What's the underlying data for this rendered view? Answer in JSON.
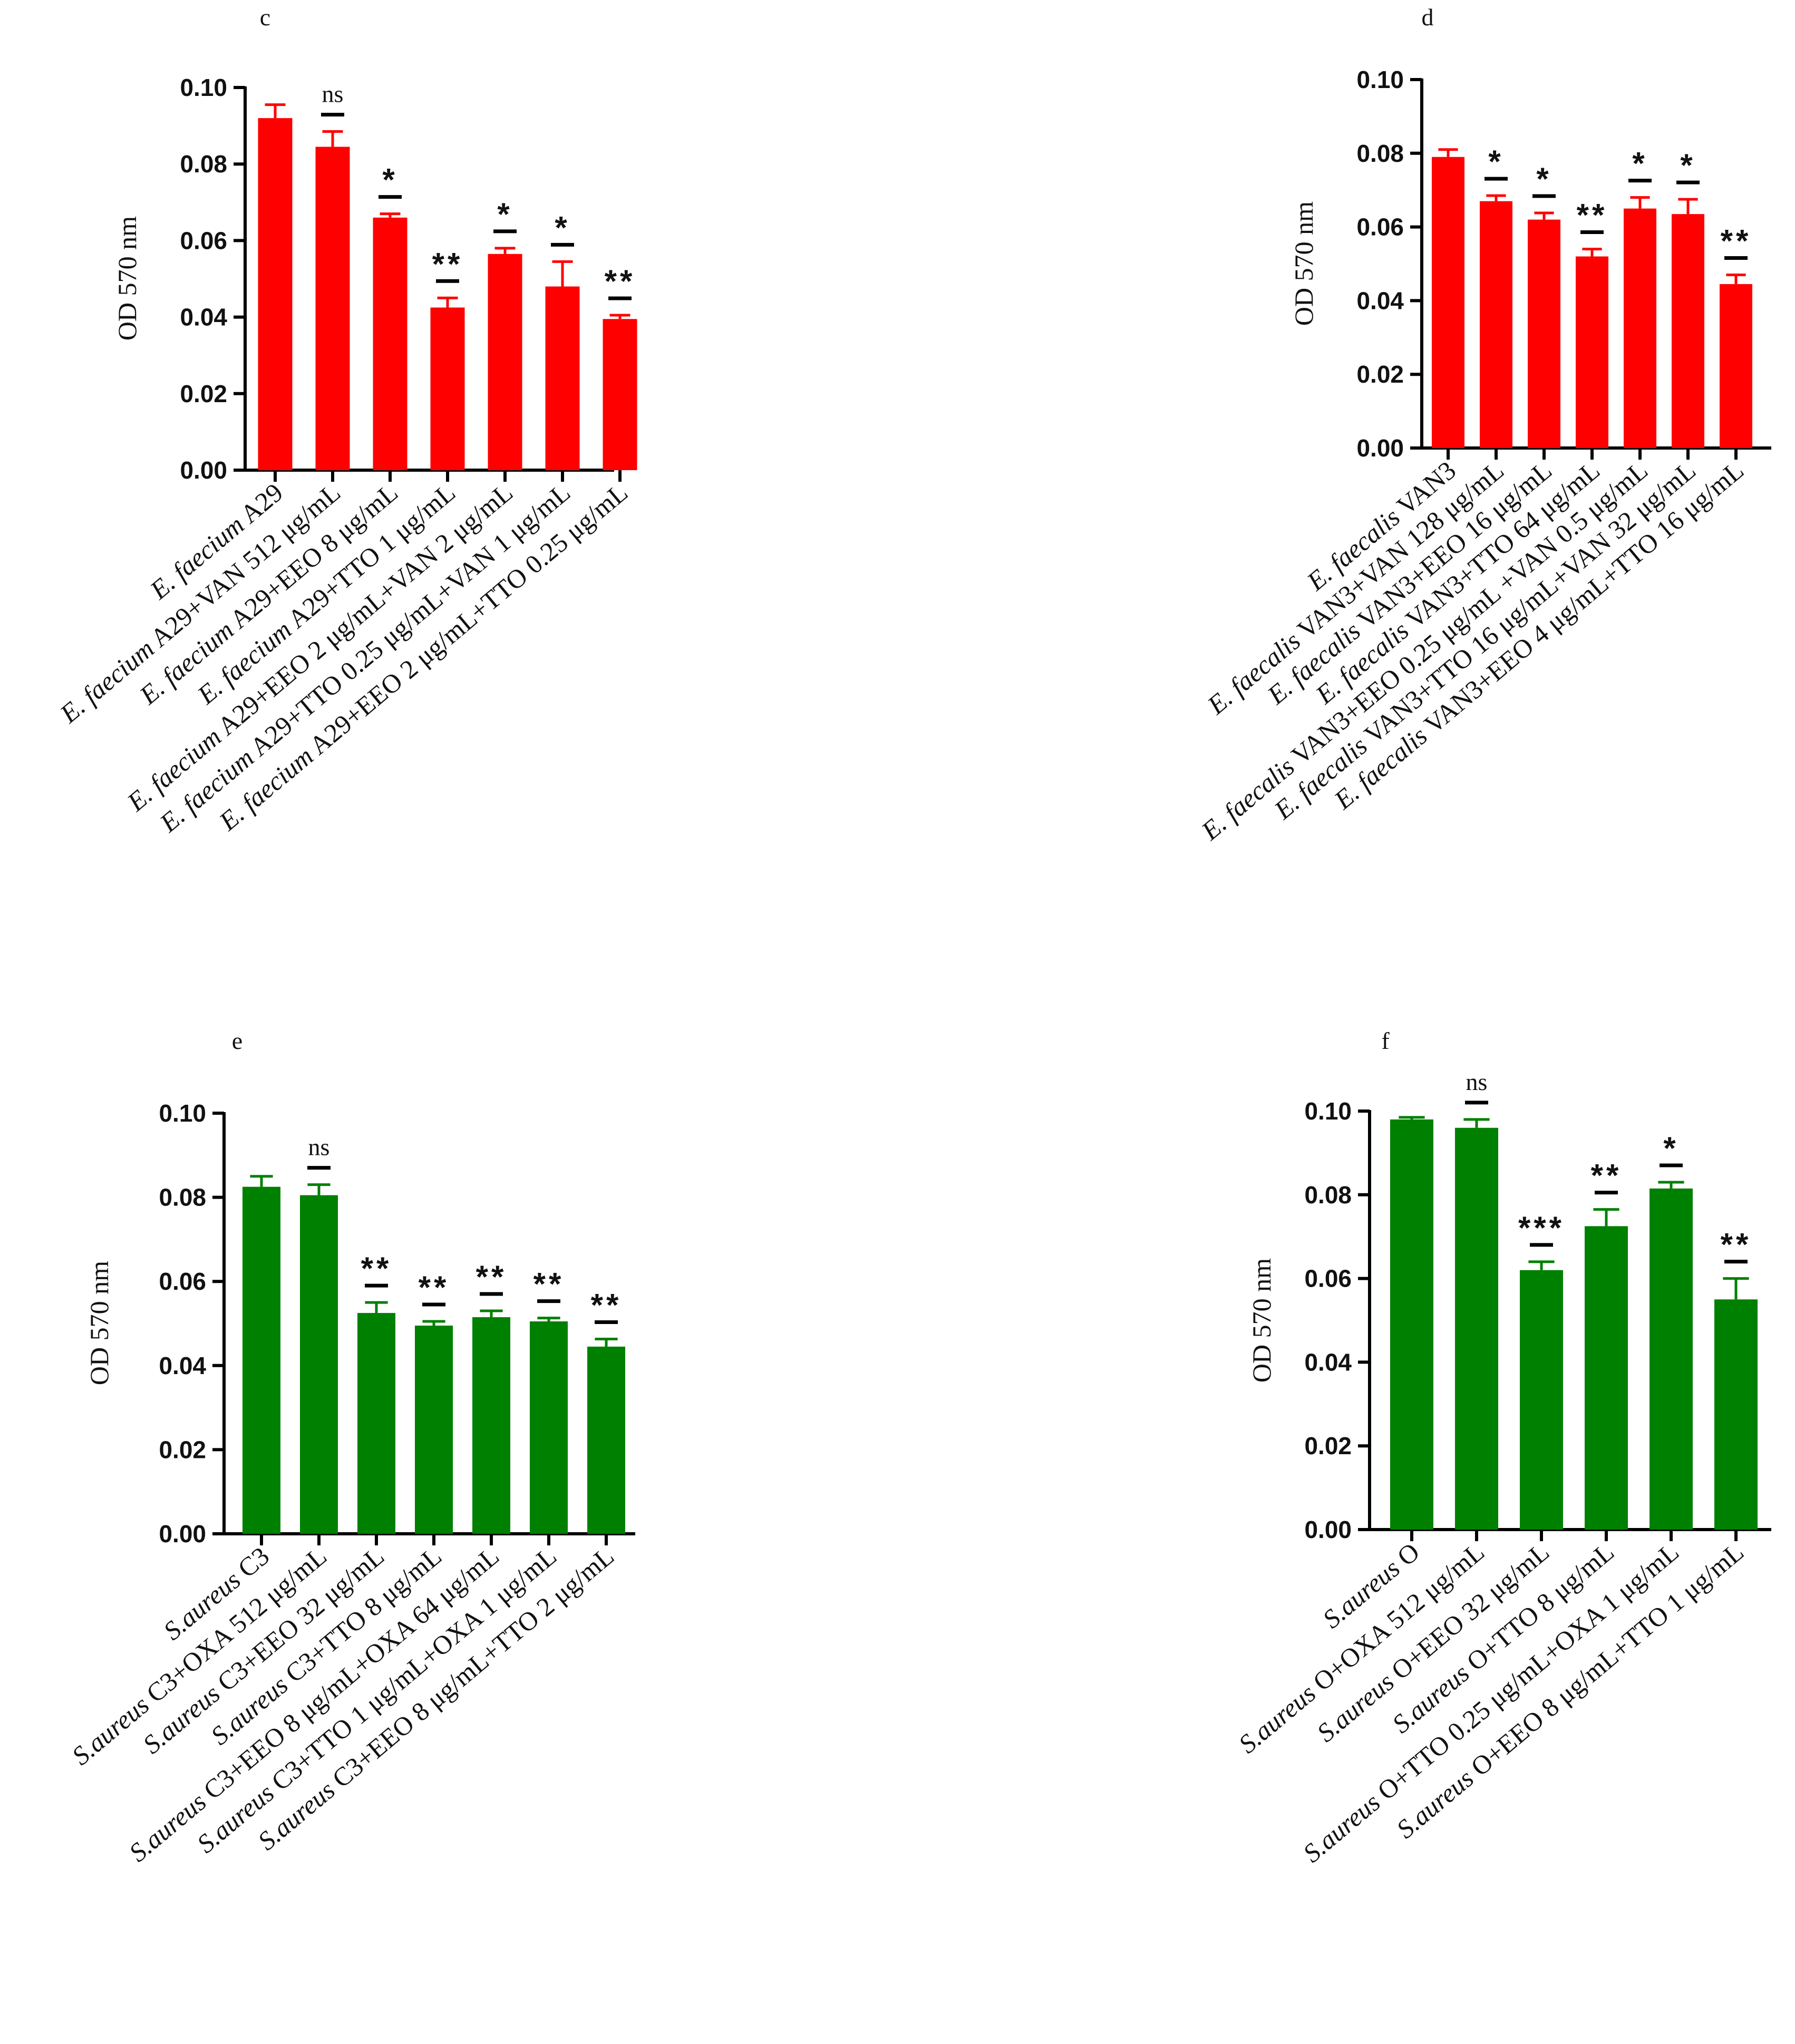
{
  "chart_data": [
    {
      "panel": "c",
      "type": "bar",
      "ylabel": "OD 570 nm",
      "ylim": [
        0,
        0.1
      ],
      "yticks": [
        "0.00",
        "0.02",
        "0.04",
        "0.06",
        "0.08",
        "0.10"
      ],
      "color": "#ff0000",
      "categories": [
        {
          "italic": "E. faecium",
          "rest": " A29"
        },
        {
          "italic": "E. faecium",
          "rest": " A29+VAN 512 μg/mL"
        },
        {
          "italic": "E. faecium",
          "rest": " A29+EEO 8 μg/mL"
        },
        {
          "italic": "E. faecium",
          "rest": " A29+TTO 1 μg/mL"
        },
        {
          "italic": "E. faecium",
          "rest": " A29+EEO 2 μg/mL+VAN 2 μg/mL"
        },
        {
          "italic": "E. faecium",
          "rest": " A29+TTO 0.25 μg/mL+VAN 1 μg/mL"
        },
        {
          "italic": "E. faecium",
          "rest": " A29+EEO 2 μg/mL+TTO 0.25 μg/mL"
        }
      ],
      "values": [
        0.092,
        0.0845,
        0.066,
        0.0425,
        0.0565,
        0.048,
        0.0395
      ],
      "errors": [
        0.0035,
        0.004,
        0.001,
        0.0025,
        0.0015,
        0.0065,
        0.001
      ],
      "significance": [
        "",
        "ns",
        "*",
        "**",
        "*",
        "*",
        "**"
      ]
    },
    {
      "panel": "d",
      "type": "bar",
      "ylabel": "OD 570 nm",
      "ylim": [
        0,
        0.1
      ],
      "yticks": [
        "0.00",
        "0.02",
        "0.04",
        "0.06",
        "0.08",
        "0.10"
      ],
      "color": "#ff0000",
      "categories": [
        {
          "italic": "E. faecalis",
          "rest": " VAN3"
        },
        {
          "italic": "E. faecalis",
          "rest": " VAN3+VAN 128 μg/mL"
        },
        {
          "italic": "E. faecalis",
          "rest": " VAN3+EEO 16 μg/mL"
        },
        {
          "italic": "E. faecalis",
          "rest": " VAN3+TTO 64 μg/mL"
        },
        {
          "italic": "E. faecalis",
          "rest": " VAN3+EEO 0.25 μg/mL +VAN 0.5 μg/mL"
        },
        {
          "italic": "E. faecalis",
          "rest": " VAN3+TTO 16 μg/mL+VAN 32 μg/mL"
        },
        {
          "italic": "E. faecalis",
          "rest": " VAN3+EEO 4 μg/mL+TTO 16 μg/mL"
        }
      ],
      "values": [
        0.079,
        0.067,
        0.062,
        0.052,
        0.065,
        0.0635,
        0.0445
      ],
      "errors": [
        0.002,
        0.0015,
        0.0018,
        0.002,
        0.003,
        0.004,
        0.0025
      ],
      "significance": [
        "",
        "*",
        "*",
        "**",
        "*",
        "*",
        "**"
      ]
    },
    {
      "panel": "e",
      "type": "bar",
      "ylabel": "OD 570 nm",
      "ylim": [
        0,
        0.1
      ],
      "yticks": [
        "0.00",
        "0.02",
        "0.04",
        "0.06",
        "0.08",
        "0.10"
      ],
      "color": "#008000",
      "categories": [
        {
          "italic": "S.aureus",
          "rest": " C3"
        },
        {
          "italic": "S.aureus",
          "rest": " C3+OXA 512 μg/mL"
        },
        {
          "italic": "S.aureus",
          "rest": " C3+EEO 32 μg/mL"
        },
        {
          "italic": "S.aureus",
          "rest": " C3+TTO 8 μg/mL"
        },
        {
          "italic": "S.aureus",
          "rest": " C3+EEO 8 μg/mL+OXA 64 μg/mL"
        },
        {
          "italic": "S.aureus",
          "rest": " C3+TTO 1 μg/mL+OXA 1 μg/mL"
        },
        {
          "italic": "S.aureus",
          "rest": " C3+EEO 8 μg/mL+TTO 2 μg/mL"
        }
      ],
      "values": [
        0.0825,
        0.0805,
        0.0525,
        0.0495,
        0.0515,
        0.0505,
        0.0445
      ],
      "errors": [
        0.0025,
        0.0025,
        0.0025,
        0.001,
        0.0015,
        0.0008,
        0.0018
      ],
      "significance": [
        "",
        "ns",
        "**",
        "**",
        "**",
        "**",
        "**"
      ]
    },
    {
      "panel": "f",
      "type": "bar",
      "ylabel": "OD 570 nm",
      "ylim": [
        0,
        0.1
      ],
      "yticks": [
        "0.00",
        "0.02",
        "0.04",
        "0.06",
        "0.08",
        "0.10"
      ],
      "color": "#008000",
      "categories": [
        {
          "italic": "S.aureus",
          "rest": " O"
        },
        {
          "italic": "S.aureus",
          "rest": " O+OXA 512 μg/mL"
        },
        {
          "italic": "S.aureus",
          "rest": " O+EEO 32 μg/mL"
        },
        {
          "italic": "S.aureus",
          "rest": " O+TTO 8 μg/mL"
        },
        {
          "italic": "S.aureus",
          "rest": " O+TTO 0.25 μg/mL+OXA 1 μg/mL"
        },
        {
          "italic": "S.aureus",
          "rest": " O+EEO 8 μg/mL+TTO 1 μg/mL"
        }
      ],
      "values": [
        0.098,
        0.096,
        0.062,
        0.0725,
        0.0815,
        0.055
      ],
      "errors": [
        0.0005,
        0.002,
        0.002,
        0.004,
        0.0015,
        0.005
      ],
      "significance": [
        "",
        "ns",
        "***",
        "**",
        "*",
        "**"
      ]
    }
  ]
}
